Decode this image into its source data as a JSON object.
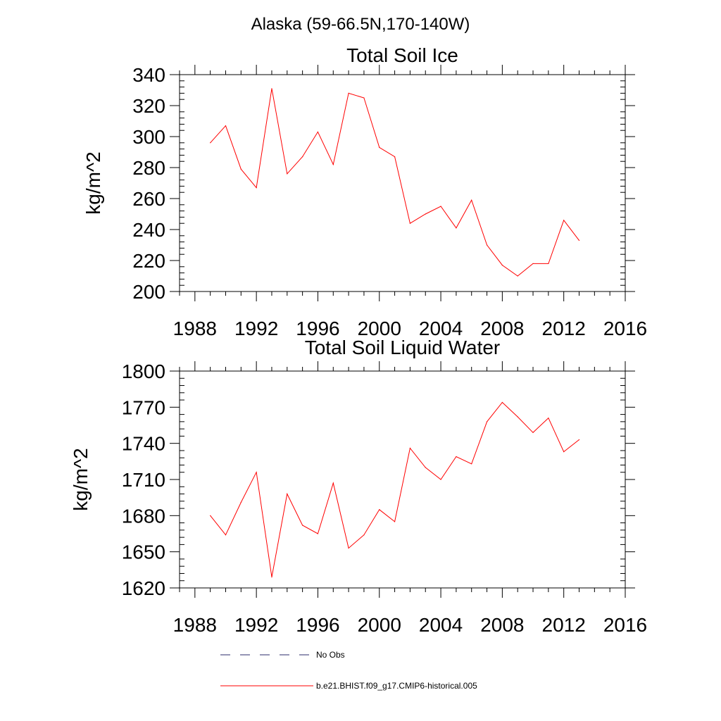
{
  "figure": {
    "title": "Alaska (59-66.5N,170-140W)"
  },
  "colors": {
    "series": "#ff0000",
    "obs": "#2b2b6b",
    "axis": "#000000"
  },
  "legend": {
    "placement": "bottom-center",
    "entries": [
      {
        "label": "No Obs",
        "style": "dashed",
        "color": "#2b2b6b"
      },
      {
        "label": "b.e21.BHIST.f09_g17.CMIP6-historical.005",
        "style": "solid",
        "color": "#ff0000"
      }
    ]
  },
  "chart_data": [
    {
      "type": "line",
      "title": "Total Soil Ice",
      "xlabel": "",
      "ylabel": "kg/m^2",
      "xlim": [
        1987,
        2016
      ],
      "ylim": [
        200,
        340
      ],
      "xticks": [
        1988,
        1992,
        1996,
        2000,
        2004,
        2008,
        2012,
        2016
      ],
      "yticks": [
        200,
        220,
        240,
        260,
        280,
        300,
        320,
        340
      ],
      "grid": false,
      "series": [
        {
          "name": "b.e21.BHIST.f09_g17.CMIP6-historical.005",
          "color": "#ff0000",
          "x": [
            1989,
            1990,
            1991,
            1992,
            1993,
            1994,
            1995,
            1996,
            1997,
            1998,
            1999,
            2000,
            2001,
            2002,
            2003,
            2004,
            2005,
            2006,
            2007,
            2008,
            2009,
            2010,
            2011,
            2012,
            2013
          ],
          "values": [
            296,
            307,
            279,
            267,
            331,
            276,
            287,
            303,
            282,
            328,
            325,
            293,
            287,
            244,
            250,
            255,
            241,
            259,
            230,
            217,
            210,
            218,
            218,
            246,
            233
          ]
        }
      ]
    },
    {
      "type": "line",
      "title": "Total Soil Liquid Water",
      "xlabel": "",
      "ylabel": "kg/m^2",
      "xlim": [
        1987,
        2016
      ],
      "ylim": [
        1620,
        1800
      ],
      "xticks": [
        1988,
        1992,
        1996,
        2000,
        2004,
        2008,
        2012,
        2016
      ],
      "yticks": [
        1620,
        1650,
        1680,
        1710,
        1740,
        1770,
        1800
      ],
      "grid": false,
      "series": [
        {
          "name": "b.e21.BHIST.f09_g17.CMIP6-historical.005",
          "color": "#ff0000",
          "x": [
            1989,
            1990,
            1991,
            1992,
            1993,
            1994,
            1995,
            1996,
            1997,
            1998,
            1999,
            2000,
            2001,
            2002,
            2003,
            2004,
            2005,
            2006,
            2007,
            2008,
            2009,
            2010,
            2011,
            2012,
            2013
          ],
          "values": [
            1680,
            1664,
            1691,
            1716,
            1629,
            1698,
            1672,
            1665,
            1707,
            1653,
            1664,
            1685,
            1675,
            1736,
            1720,
            1710,
            1729,
            1723,
            1758,
            1774,
            1762,
            1749,
            1761,
            1733,
            1743
          ]
        }
      ]
    }
  ]
}
